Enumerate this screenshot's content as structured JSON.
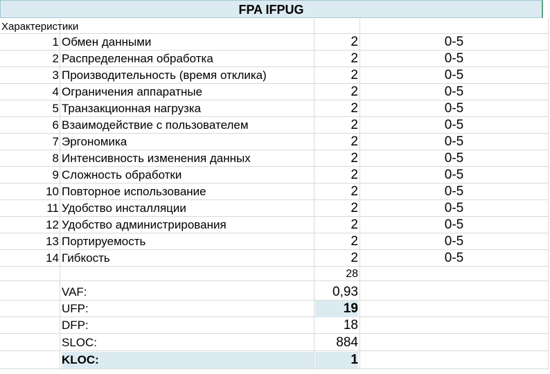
{
  "title": "FPA IFPUG",
  "caption": "Характеристики",
  "rows": [
    {
      "num": "1",
      "name": "Обмен данными",
      "value": "2",
      "range": "0-5"
    },
    {
      "num": "2",
      "name": "Распределенная обработка",
      "value": "2",
      "range": "0-5"
    },
    {
      "num": "3",
      "name": "Производительность (время отклика)",
      "value": "2",
      "range": "0-5"
    },
    {
      "num": "4",
      "name": "Ограничения аппаратные",
      "value": "2",
      "range": "0-5"
    },
    {
      "num": "5",
      "name": "Транзакционная нагрузка",
      "value": "2",
      "range": "0-5"
    },
    {
      "num": "6",
      "name": "Взаимодействие с пользователем",
      "value": "2",
      "range": "0-5"
    },
    {
      "num": "7",
      "name": "Эргономика",
      "value": "2",
      "range": "0-5"
    },
    {
      "num": "8",
      "name": "Интенсивность изменения данных",
      "value": "2",
      "range": "0-5"
    },
    {
      "num": "9",
      "name": "Сложность обработки",
      "value": "2",
      "range": "0-5"
    },
    {
      "num": "10",
      "name": "Повторное использование",
      "value": "2",
      "range": "0-5"
    },
    {
      "num": "11",
      "name": "Удобство инсталляции",
      "value": "2",
      "range": "0-5"
    },
    {
      "num": "12",
      "name": "Удобство администрирования",
      "value": "2",
      "range": "0-5"
    },
    {
      "num": "13",
      "name": "Портируемость",
      "value": "2",
      "range": "0-5"
    },
    {
      "num": "14",
      "name": "Гибкость",
      "value": "2",
      "range": "0-5"
    }
  ],
  "total": "28",
  "metrics": {
    "vaf": {
      "label": "VAF:",
      "value": "0,93"
    },
    "ufp": {
      "label": "UFP:",
      "value": "19"
    },
    "dfp": {
      "label": "DFP:",
      "value": "18"
    },
    "sloc": {
      "label": "SLOC:",
      "value": "884"
    },
    "kloc": {
      "label": "KLOC:",
      "value": "1"
    }
  },
  "colors": {
    "highlight": "#dcebf2",
    "grid": "#d9d9d9",
    "selection_border": "#5aa07a"
  }
}
